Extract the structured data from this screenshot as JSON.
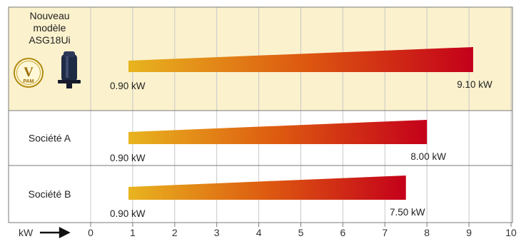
{
  "chart_data": {
    "type": "bar",
    "orientation": "horizontal",
    "x_axis_label": "kW",
    "xlim": [
      0,
      10
    ],
    "x_ticks": [
      "0",
      "1",
      "2",
      "3",
      "4",
      "5",
      "6",
      "7",
      "8",
      "9",
      "10"
    ],
    "grid": true,
    "colors": {
      "highlight_background": "#fbf1cd",
      "gradient_start": "#e8b41f",
      "gradient_mid": "#dd5a10",
      "gradient_end": "#c4001a",
      "grid": "#c8c8c8",
      "border": "#7a7a7a"
    },
    "series": [
      {
        "label_lines": [
          "Nouveau",
          "modèle",
          "ASG18Ui"
        ],
        "badge_letter": "V",
        "badge_text": "PAM",
        "icon": "compressor-icon",
        "highlight": true,
        "min": 0.9,
        "max": 9.1,
        "min_label": "0.90 kW",
        "max_label": "9.10 kW"
      },
      {
        "label_lines": [
          "Société A"
        ],
        "highlight": false,
        "min": 0.9,
        "max": 8.0,
        "min_label": "0.90 kW",
        "max_label": "8.00 kW"
      },
      {
        "label_lines": [
          "Société B"
        ],
        "highlight": false,
        "min": 0.9,
        "max": 7.5,
        "min_label": "0.90 kW",
        "max_label": "7.50 kW"
      }
    ]
  }
}
